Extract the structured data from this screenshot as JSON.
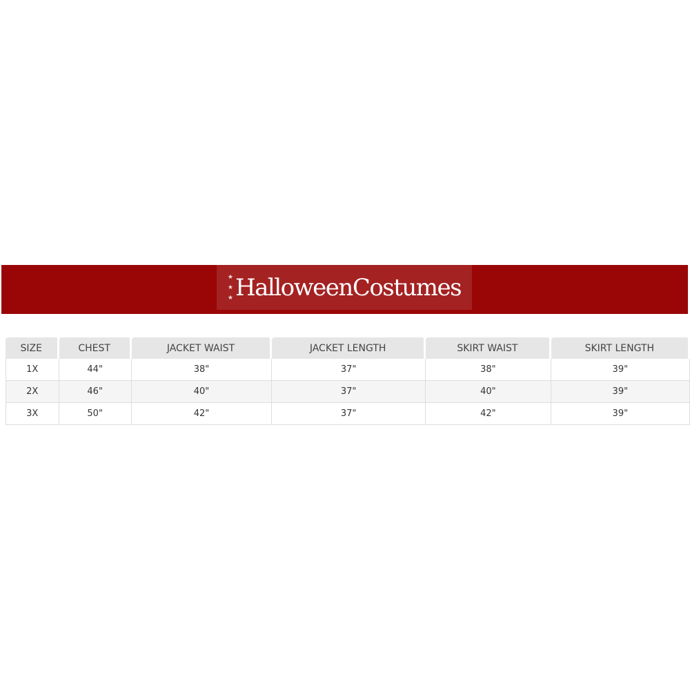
{
  "brand": {
    "logo_text": "HalloweenCostumes",
    "banner_color": "#9a0606",
    "logo_bg_color": "#a42222"
  },
  "size_chart": {
    "headers": [
      "SIZE",
      "CHEST",
      "JACKET WAIST",
      "JACKET LENGTH",
      "SKIRT WAIST",
      "SKIRT LENGTH"
    ],
    "rows": [
      [
        "1X",
        "44\"",
        "38\"",
        "37\"",
        "38\"",
        "39\""
      ],
      [
        "2X",
        "46\"",
        "40\"",
        "37\"",
        "40\"",
        "39\""
      ],
      [
        "3X",
        "50\"",
        "42\"",
        "37\"",
        "42\"",
        "39\""
      ]
    ]
  }
}
